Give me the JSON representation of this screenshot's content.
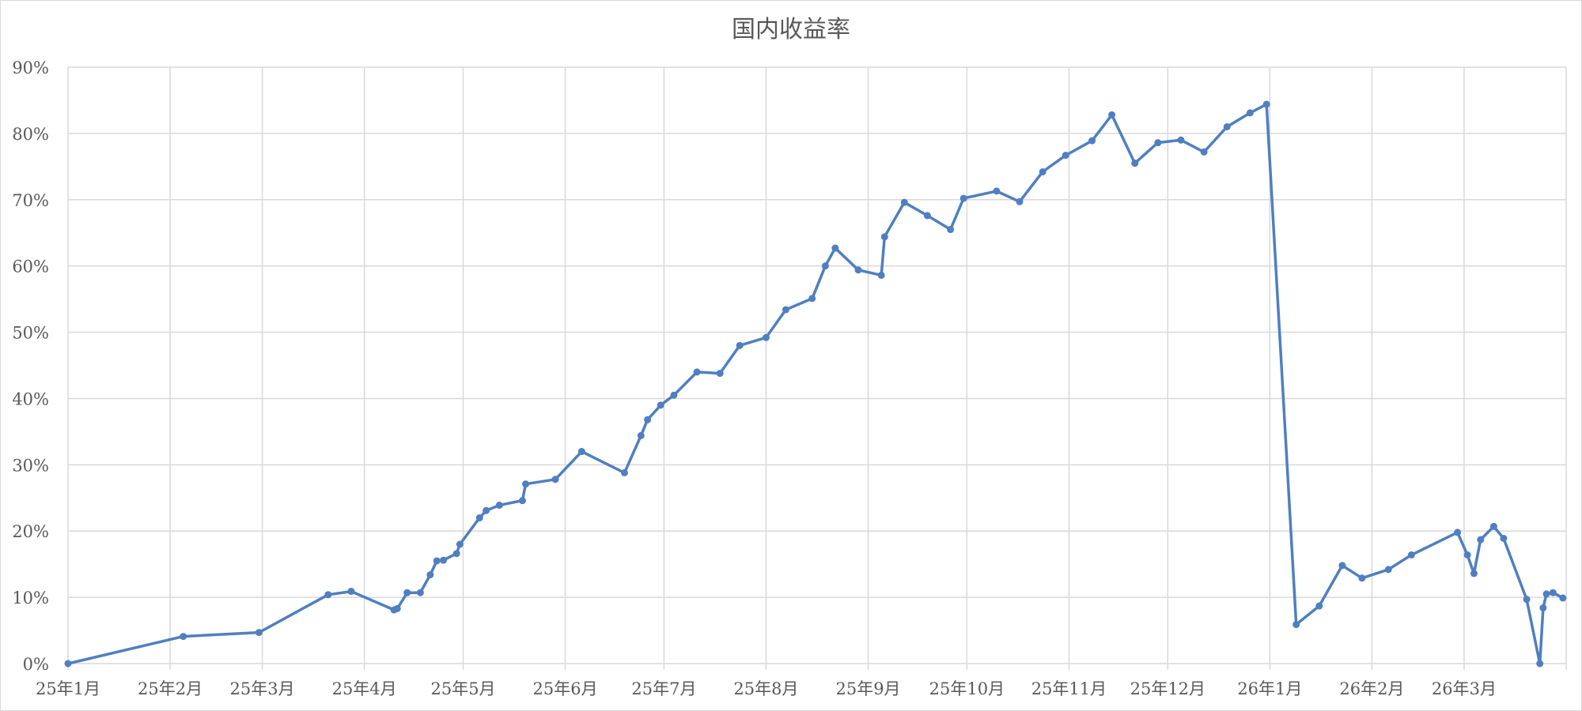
{
  "chart_data": {
    "type": "line",
    "title": "国内收益率",
    "xlabel": "",
    "ylabel": "",
    "xlim": [
      "2025-01-01",
      "2026-03-31"
    ],
    "ylim": [
      0,
      90
    ],
    "y_unit": "%",
    "grid": true,
    "legend": "none",
    "x_tick_labels": [
      "25年1月",
      "25年2月",
      "25年3月",
      "25年4月",
      "25年5月",
      "25年6月",
      "25年7月",
      "25年8月",
      "25年9月",
      "25年10月",
      "25年11月",
      "25年12月",
      "26年1月",
      "26年2月",
      "26年3月"
    ],
    "x_tick_dates": [
      "2025-01-01",
      "2025-02-01",
      "2025-03-01",
      "2025-04-01",
      "2025-05-01",
      "2025-06-01",
      "2025-07-01",
      "2025-08-01",
      "2025-09-01",
      "2025-10-01",
      "2025-11-01",
      "2025-12-01",
      "2026-01-01",
      "2026-02-01",
      "2026-03-01"
    ],
    "y_tick_labels": [
      "0%",
      "10%",
      "20%",
      "30%",
      "40%",
      "50%",
      "60%",
      "70%",
      "80%",
      "90%"
    ],
    "y_ticks": [
      0,
      10,
      20,
      30,
      40,
      50,
      60,
      70,
      80,
      90
    ],
    "series": [
      {
        "color": "#4f7fc0",
        "marker": "circle",
        "x": [
          "2025-01-01",
          "2025-02-05",
          "2025-02-28",
          "2025-03-21",
          "2025-03-28",
          "2025-04-10",
          "2025-04-11",
          "2025-04-14",
          "2025-04-18",
          "2025-04-21",
          "2025-04-23",
          "2025-04-25",
          "2025-04-29",
          "2025-04-30",
          "2025-05-06",
          "2025-05-08",
          "2025-05-12",
          "2025-05-19",
          "2025-05-20",
          "2025-05-29",
          "2025-06-06",
          "2025-06-19",
          "2025-06-24",
          "2025-06-26",
          "2025-06-30",
          "2025-07-04",
          "2025-07-11",
          "2025-07-18",
          "2025-07-24",
          "2025-08-01",
          "2025-08-07",
          "2025-08-15",
          "2025-08-19",
          "2025-08-22",
          "2025-08-29",
          "2025-09-05",
          "2025-09-06",
          "2025-09-12",
          "2025-09-19",
          "2025-09-26",
          "2025-09-30",
          "2025-10-10",
          "2025-10-17",
          "2025-10-24",
          "2025-10-31",
          "2025-11-08",
          "2025-11-14",
          "2025-11-21",
          "2025-11-28",
          "2025-12-05",
          "2025-12-12",
          "2025-12-19",
          "2025-12-26",
          "2025-12-31",
          "2026-01-09",
          "2026-01-16",
          "2026-01-23",
          "2026-01-29",
          "2026-02-06",
          "2026-02-13",
          "2026-02-27",
          "2026-03-02",
          "2026-03-04",
          "2026-03-06",
          "2026-03-10",
          "2026-03-13",
          "2026-03-20",
          "2026-03-24",
          "2026-03-25",
          "2026-03-26",
          "2026-03-28",
          "2026-03-31"
        ],
        "y": [
          0,
          4.1,
          4.7,
          10.4,
          10.9,
          8.1,
          8.3,
          10.7,
          10.7,
          13.4,
          15.5,
          15.6,
          16.6,
          18.0,
          22.0,
          23.1,
          23.9,
          24.6,
          27.1,
          27.8,
          32.0,
          28.8,
          34.4,
          36.8,
          39.0,
          40.5,
          44.0,
          43.8,
          48.0,
          49.2,
          53.4,
          55.1,
          60.0,
          62.7,
          59.4,
          58.6,
          64.4,
          69.6,
          67.6,
          65.5,
          70.2,
          71.3,
          69.7,
          74.2,
          76.7,
          78.9,
          82.8,
          75.5,
          78.6,
          79.0,
          77.2,
          81.0,
          83.1,
          84.4,
          5.9,
          8.7,
          14.8,
          12.9,
          14.2,
          16.4,
          19.8,
          16.4,
          13.6,
          18.7,
          20.7,
          18.9,
          9.7,
          0.0,
          8.4,
          10.5,
          10.7,
          9.9
        ]
      }
    ]
  }
}
